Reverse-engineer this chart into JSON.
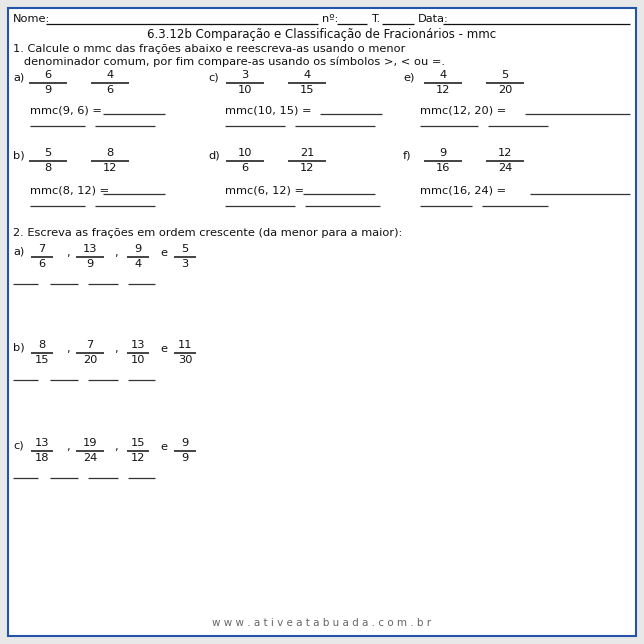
{
  "page_bg": "#e8e8e8",
  "border_color": "#2255aa",
  "text_color": "#111111",
  "title_text": "6.3.12b Comparação e Classificação de Fracionários - mmc",
  "q1_intro": "1. Calcule o mmc das frações abaixo e reescreva-as usando o menor",
  "q1_intro2": "   denominador comum, por fim compare-as usando os símbolos >, < ou =.",
  "q2_intro": "2. Escreva as frações em ordem crescente (da menor para a maior):",
  "website": "w w w . a t i v e a t a b u a d a . c o m . b r",
  "fractions_row1": [
    {
      "label": "a)",
      "n1": "6",
      "d1": "9",
      "n2": "4",
      "d2": "6"
    },
    {
      "label": "c)",
      "n1": "3",
      "d1": "10",
      "n2": "4",
      "d2": "15"
    },
    {
      "label": "e)",
      "n1": "4",
      "d1": "12",
      "n2": "5",
      "d2": "20"
    }
  ],
  "mmc_row1": [
    "mmc(9, 6) = ",
    "mmc(10, 15) = ",
    "mmc(12, 20) = "
  ],
  "fractions_row2": [
    {
      "label": "b)",
      "n1": "5",
      "d1": "8",
      "n2": "8",
      "d2": "12"
    },
    {
      "label": "d)",
      "n1": "10",
      "d1": "6",
      "n2": "21",
      "d2": "12"
    },
    {
      "label": "f)",
      "n1": "9",
      "d1": "16",
      "n2": "12",
      "d2": "24"
    }
  ],
  "mmc_row2": [
    "mmc(8, 12) = ",
    "mmc(6, 12) = ",
    "mmc(16, 24) = "
  ],
  "order_a_label": "a)",
  "order_a_fracs": [
    [
      "7",
      "6"
    ],
    [
      "13",
      "9"
    ],
    [
      "9",
      "4"
    ],
    [
      "5",
      "3"
    ]
  ],
  "order_b_label": "b)",
  "order_b_fracs": [
    [
      "8",
      "15"
    ],
    [
      "7",
      "20"
    ],
    [
      "13",
      "10"
    ],
    [
      "11",
      "30"
    ]
  ],
  "order_c_label": "c)",
  "order_c_fracs": [
    [
      "13",
      "18"
    ],
    [
      "19",
      "24"
    ],
    [
      "15",
      "12"
    ],
    [
      "9",
      "9"
    ]
  ]
}
